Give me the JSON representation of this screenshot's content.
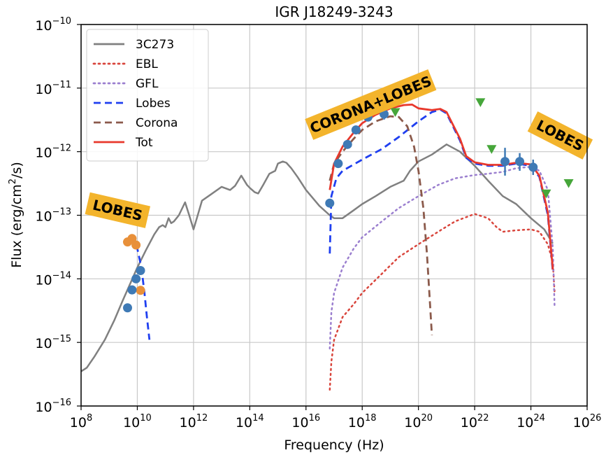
{
  "chart_data": {
    "type": "line",
    "title": "IGR J18249-3243",
    "xlabel": "Frequency (Hz)",
    "ylabel_parts": [
      "Flux (erg/cm",
      "2",
      "/s)"
    ],
    "xscale": "log",
    "yscale": "log",
    "xlim": [
      100000000.0,
      1e+26
    ],
    "ylim": [
      1e-16,
      1e-10
    ],
    "grid": true,
    "legend_position": "top-left",
    "x_ticks": [
      {
        "base": "10",
        "exp": "8",
        "value": 100000000.0
      },
      {
        "base": "10",
        "exp": "10",
        "value": 10000000000.0
      },
      {
        "base": "10",
        "exp": "12",
        "value": 1000000000000.0
      },
      {
        "base": "10",
        "exp": "14",
        "value": 100000000000000.0
      },
      {
        "base": "10",
        "exp": "16",
        "value": 1e+16
      },
      {
        "base": "10",
        "exp": "18",
        "value": 1e+18
      },
      {
        "base": "10",
        "exp": "20",
        "value": 1e+20
      },
      {
        "base": "10",
        "exp": "22",
        "value": 1e+22
      },
      {
        "base": "10",
        "exp": "24",
        "value": 1e+24
      },
      {
        "base": "10",
        "exp": "26",
        "value": 1e+26
      }
    ],
    "y_ticks": [
      {
        "base": "10",
        "exp": "−16",
        "value": 1e-16
      },
      {
        "base": "10",
        "exp": "−15",
        "value": 1e-15
      },
      {
        "base": "10",
        "exp": "−14",
        "value": 1e-14
      },
      {
        "base": "10",
        "exp": "−13",
        "value": 1e-13
      },
      {
        "base": "10",
        "exp": "−12",
        "value": 1e-12
      },
      {
        "base": "10",
        "exp": "−11",
        "value": 1e-11
      },
      {
        "base": "10",
        "exp": "−10",
        "value": 1e-10
      }
    ],
    "series": [
      {
        "name": "3C273",
        "color": "#808080",
        "style": "solid",
        "width": 2.5,
        "points": [
          [
            100000000.0,
            3.5e-16
          ],
          [
            160000000.0,
            4e-16
          ],
          [
            300000000.0,
            6e-16
          ],
          [
            700000000.0,
            1.1e-15
          ],
          [
            1500000000.0,
            2.2e-15
          ],
          [
            3000000000.0,
            4.5e-15
          ],
          [
            6000000000.0,
            9e-15
          ],
          [
            10000000000.0,
            1.5e-14
          ],
          [
            20000000000.0,
            2.8e-14
          ],
          [
            40000000000.0,
            5e-14
          ],
          [
            60000000000.0,
            6.5e-14
          ],
          [
            80000000000.0,
            7e-14
          ],
          [
            100000000000.0,
            6.5e-14
          ],
          [
            130000000000.0,
            9e-14
          ],
          [
            160000000000.0,
            7.5e-14
          ],
          [
            200000000000.0,
            8e-14
          ],
          [
            300000000000.0,
            1e-13
          ],
          [
            500000000000.0,
            1.6e-13
          ],
          [
            700000000000.0,
            1e-13
          ],
          [
            1000000000000.0,
            6e-14
          ],
          [
            1500000000000.0,
            1.1e-13
          ],
          [
            2000000000000.0,
            1.7e-13
          ],
          [
            4000000000000.0,
            2.1e-13
          ],
          [
            10000000000000.0,
            2.8e-13
          ],
          [
            20000000000000.0,
            2.5e-13
          ],
          [
            30000000000000.0,
            2.9e-13
          ],
          [
            50000000000000.0,
            4.2e-13
          ],
          [
            80000000000000.0,
            3e-13
          ],
          [
            100000000000000.0,
            2.7e-13
          ],
          [
            150000000000000.0,
            2.3e-13
          ],
          [
            200000000000000.0,
            2.2e-13
          ],
          [
            300000000000000.0,
            3e-13
          ],
          [
            500000000000000.0,
            4.5e-13
          ],
          [
            800000000000000.0,
            5e-13
          ],
          [
            1000000000000000.0,
            6.5e-13
          ],
          [
            1500000000000000.0,
            7e-13
          ],
          [
            2000000000000000.0,
            6.7e-13
          ],
          [
            3000000000000000.0,
            5.5e-13
          ],
          [
            5000000000000000.0,
            4e-13
          ],
          [
            1e+16,
            2.5e-13
          ],
          [
            3e+16,
            1.4e-13
          ],
          [
            7e+16,
            1e-13
          ],
          [
            1e+17,
            9e-14
          ],
          [
            2e+17,
            9e-14
          ],
          [
            5e+17,
            1.2e-13
          ],
          [
            1e+18,
            1.5e-13
          ],
          [
            3e+18,
            2e-13
          ],
          [
            1e+19,
            2.8e-13
          ],
          [
            3e+19,
            3.5e-13
          ],
          [
            5e+19,
            5e-13
          ],
          [
            1e+20,
            7e-13
          ],
          [
            3e+20,
            9e-13
          ],
          [
            1e+21,
            1.3e-12
          ],
          [
            3e+21,
            1e-12
          ],
          [
            1e+22,
            6e-13
          ],
          [
            3e+22,
            3.5e-13
          ],
          [
            1e+23,
            2e-13
          ],
          [
            3e+23,
            1.5e-13
          ],
          [
            1e+24,
            9e-14
          ],
          [
            3e+24,
            6e-14
          ],
          [
            6e+24,
            3.6e-14
          ]
        ]
      },
      {
        "name": "EBL",
        "color": "#d9453c",
        "style": "dotted",
        "width": 2.5,
        "points": [
          [
            7e+16,
            1.8e-16
          ],
          [
            8e+16,
            5e-16
          ],
          [
            1e+17,
            1.1e-15
          ],
          [
            2e+17,
            2.5e-15
          ],
          [
            5e+17,
            4e-15
          ],
          [
            1e+18,
            6e-15
          ],
          [
            5e+18,
            1.2e-14
          ],
          [
            2e+19,
            2.2e-14
          ],
          [
            1e+20,
            3.5e-14
          ],
          [
            5e+20,
            5.5e-14
          ],
          [
            2e+21,
            8e-14
          ],
          [
            1e+22,
            1.05e-13
          ],
          [
            3e+22,
            9e-14
          ],
          [
            6e+22,
            6.5e-14
          ],
          [
            1e+23,
            5.5e-14
          ],
          [
            3e+23,
            5.8e-14
          ],
          [
            1e+24,
            6e-14
          ],
          [
            2e+24,
            5.5e-14
          ],
          [
            4e+24,
            3.5e-14
          ],
          [
            6e+24,
            1.8e-14
          ],
          [
            7e+24,
            6e-15
          ]
        ]
      },
      {
        "name": "GFL",
        "color": "#9b7fcf",
        "style": "dotted",
        "width": 2.5,
        "points": [
          [
            7e+16,
            8e-16
          ],
          [
            8e+16,
            3e-15
          ],
          [
            1e+17,
            6e-15
          ],
          [
            2e+17,
            1.5e-14
          ],
          [
            5e+17,
            3e-14
          ],
          [
            1e+18,
            4.5e-14
          ],
          [
            5e+18,
            8e-14
          ],
          [
            2e+19,
            1.3e-13
          ],
          [
            1e+20,
            2e-13
          ],
          [
            5e+20,
            3e-13
          ],
          [
            2e+21,
            3.8e-13
          ],
          [
            1e+22,
            4.3e-13
          ],
          [
            3e+22,
            4.5e-13
          ],
          [
            1e+23,
            4.8e-13
          ],
          [
            3e+23,
            5.5e-13
          ],
          [
            1e+24,
            5.8e-13
          ],
          [
            2e+24,
            5e-13
          ],
          [
            4e+24,
            2.5e-13
          ],
          [
            6e+24,
            3e-14
          ],
          [
            7e+24,
            3.5e-15
          ]
        ]
      },
      {
        "name": "Lobes",
        "color": "#1f3ff0",
        "style": "dashed",
        "width": 2.8,
        "points": [
          [
            5000000000.0,
            4.5e-14
          ],
          [
            7000000000.0,
            4.2e-14
          ],
          [
            10000000000.0,
            3e-14
          ],
          [
            14000000000.0,
            1.5e-14
          ],
          [
            18000000000.0,
            6e-15
          ],
          [
            22000000000.0,
            2.5e-15
          ],
          [
            27000000000.0,
            1.1e-15
          ]
        ]
      },
      {
        "name": "Lobes",
        "color": "#1f3ff0",
        "style": "dashed",
        "width": 2.8,
        "points": [
          [
            7e+16,
            2.5e-14
          ],
          [
            8e+16,
            2e-13
          ],
          [
            1.2e+17,
            3.8e-13
          ],
          [
            2e+17,
            5e-13
          ],
          [
            5e+17,
            6.3e-13
          ],
          [
            1e+18,
            7.5e-13
          ],
          [
            5e+18,
            1.1e-12
          ],
          [
            2e+19,
            1.7e-12
          ],
          [
            1e+20,
            3e-12
          ],
          [
            3e+20,
            4.2e-12
          ],
          [
            6e+20,
            4.6e-12
          ],
          [
            1e+21,
            4e-12
          ],
          [
            3e+21,
            1.5e-12
          ],
          [
            5e+21,
            8e-13
          ],
          [
            1e+22,
            6.5e-13
          ],
          [
            3e+22,
            6e-13
          ],
          [
            1e+23,
            6e-13
          ],
          [
            3e+23,
            6.5e-13
          ],
          [
            1e+24,
            6e-13
          ],
          [
            2e+24,
            4e-13
          ],
          [
            4e+24,
            1e-13
          ],
          [
            6e+24,
            1.3e-14
          ]
        ]
      },
      {
        "name": "Corona",
        "color": "#8b5a4b",
        "style": "dashed",
        "width": 2.8,
        "points": [
          [
            7e+16,
            3.5e-13
          ],
          [
            1e+17,
            6.5e-13
          ],
          [
            2e+17,
            1e-12
          ],
          [
            5e+17,
            1.6e-12
          ],
          [
            1e+18,
            2.2e-12
          ],
          [
            3e+18,
            3e-12
          ],
          [
            1e+19,
            3.6e-12
          ],
          [
            2e+19,
            3.5e-12
          ],
          [
            4e+19,
            2.5e-12
          ],
          [
            7e+19,
            1.2e-12
          ],
          [
            1e+20,
            5e-13
          ],
          [
            1.5e+20,
            1.3e-13
          ],
          [
            2e+20,
            2.5e-14
          ],
          [
            2.5e+20,
            5e-15
          ],
          [
            3e+20,
            1.3e-15
          ]
        ]
      },
      {
        "name": "Tot",
        "color": "#e8382c",
        "style": "solid",
        "width": 2.8,
        "points": [
          [
            7e+16,
            2.5e-13
          ],
          [
            1e+17,
            6.5e-13
          ],
          [
            2e+17,
            1.2e-12
          ],
          [
            5e+17,
            2e-12
          ],
          [
            1e+18,
            2.8e-12
          ],
          [
            3e+18,
            3.8e-12
          ],
          [
            1e+19,
            4.8e-12
          ],
          [
            3e+19,
            5.4e-12
          ],
          [
            6e+19,
            5.5e-12
          ],
          [
            1e+20,
            4.8e-12
          ],
          [
            3e+20,
            4.5e-12
          ],
          [
            6e+20,
            4.7e-12
          ],
          [
            1e+21,
            4.2e-12
          ],
          [
            3e+21,
            1.6e-12
          ],
          [
            5e+21,
            8.5e-13
          ],
          [
            1e+22,
            6.8e-13
          ],
          [
            3e+22,
            6.2e-13
          ],
          [
            1e+23,
            6.2e-13
          ],
          [
            3e+23,
            6.7e-13
          ],
          [
            1e+24,
            6.3e-13
          ],
          [
            2e+24,
            4.2e-13
          ],
          [
            4e+24,
            1.1e-13
          ],
          [
            6e+24,
            1.4e-14
          ]
        ]
      }
    ],
    "legend": [
      {
        "label": "3C273",
        "color": "#808080",
        "style": "solid"
      },
      {
        "label": "EBL",
        "color": "#d9453c",
        "style": "dotted"
      },
      {
        "label": "GFL",
        "color": "#9b7fcf",
        "style": "dotted"
      },
      {
        "label": "Lobes",
        "color": "#1f3ff0",
        "style": "dashed"
      },
      {
        "label": "Corona",
        "color": "#8b5a4b",
        "style": "dashed"
      },
      {
        "label": "Tot",
        "color": "#e8382c",
        "style": "solid"
      }
    ],
    "scatter": [
      {
        "marker": "circle",
        "color": "#e8903a",
        "points": [
          [
            4500000000.0,
            3.8e-14
          ],
          [
            6500000000.0,
            4.3e-14
          ],
          [
            9000000000.0,
            3.4e-14
          ],
          [
            13000000000.0,
            6.6e-15
          ]
        ]
      },
      {
        "marker": "circle",
        "color": "#3f7ab5",
        "points": [
          [
            4500000000.0,
            3.5e-15
          ],
          [
            6500000000.0,
            6.7e-15
          ],
          [
            9000000000.0,
            1e-14
          ],
          [
            13000000000.0,
            1.35e-14
          ],
          [
            7e+16,
            1.55e-13
          ],
          [
            1.4e+17,
            6.5e-13
          ],
          [
            3e+17,
            1.3e-12
          ],
          [
            6e+17,
            2.2e-12
          ],
          [
            1.6e+18,
            3.5e-12
          ],
          [
            6e+18,
            3.9e-12
          ],
          [
            1.2e+23,
            7e-13
          ],
          [
            4e+23,
            7e-13
          ],
          [
            1.2e+24,
            5.7e-13
          ]
        ],
        "error_bars": [
          {
            "x": 6e+18,
            "ylo": 3.2e-12,
            "yhi": 4.7e-12
          },
          {
            "x": 1.2e+23,
            "ylo": 4.2e-13,
            "yhi": 1.15e-12
          },
          {
            "x": 4e+23,
            "ylo": 5e-13,
            "yhi": 9.5e-13
          },
          {
            "x": 1.2e+24,
            "ylo": 4.3e-13,
            "yhi": 7.5e-13
          }
        ]
      },
      {
        "marker": "triangle-down",
        "color": "#46a63a",
        "points": [
          [
            1.5e+19,
            4.2e-12
          ],
          [
            1.6e+22,
            6e-12
          ],
          [
            4e+22,
            1.1e-12
          ],
          [
            3.5e+24,
            2.2e-13
          ],
          [
            2.2e+25,
            3.2e-13
          ]
        ]
      }
    ],
    "annotations": [
      {
        "text": "LOBES",
        "x": 2000000000.0,
        "y": 1.2e-13,
        "angle": 13
      },
      {
        "text": "CORONA+LOBES",
        "x": 2e+18,
        "y": 5.5e-12,
        "angle": -22
      },
      {
        "text": "LOBES",
        "x": 1.1e+25,
        "y": 1.8e-12,
        "angle": 27
      }
    ],
    "annotation_color": "#f3b42c"
  }
}
